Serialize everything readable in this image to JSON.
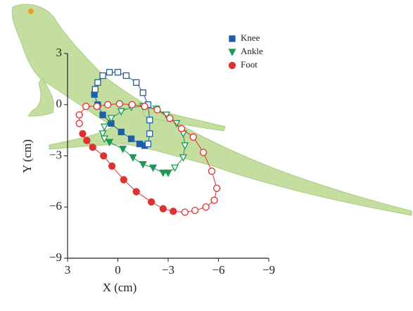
{
  "chart_data": {
    "type": "scatter",
    "xlabel": "X (cm)",
    "ylabel": "Y (cm)",
    "xlim": [
      3,
      -9
    ],
    "ylim": [
      -9,
      3
    ],
    "xticks": [
      3,
      0,
      {
        "value": -3,
        "label": "−3"
      },
      {
        "value": -6,
        "label": "−6"
      },
      {
        "value": -9,
        "label": "−9"
      }
    ],
    "yticks": [
      3,
      0,
      {
        "value": -3,
        "label": "−3"
      },
      {
        "value": -6,
        "label": "−6"
      },
      {
        "value": -9,
        "label": "−9"
      }
    ],
    "legend": "upper right",
    "series": [
      {
        "name": "Knee",
        "color": "#1f5fa8",
        "marker": "square",
        "x": [
          1.4,
          1.2,
          0.9,
          0.4,
          -0.2,
          -0.8,
          -1.3,
          -1.6,
          -1.8,
          -1.9,
          -1.9,
          -1.8,
          -1.5,
          -1.1,
          -0.5,
          0,
          0.5,
          0.9,
          1.2,
          1.35
        ],
        "values": [
          0.6,
          0.0,
          -0.6,
          -1.1,
          -1.6,
          -2.0,
          -2.3,
          -2.4,
          -2.3,
          -1.7,
          -0.9,
          0,
          0.7,
          1.3,
          1.7,
          1.9,
          1.9,
          1.7,
          1.3,
          0.9
        ],
        "filled": [
          true,
          true,
          true,
          true,
          true,
          true,
          true,
          true,
          false,
          false,
          false,
          false,
          false,
          false,
          false,
          false,
          false,
          false,
          false,
          false
        ]
      },
      {
        "name": "Ankle",
        "color": "#1a9a55",
        "marker": "triangle",
        "x": [
          0.5,
          -0.3,
          -0.9,
          -1.5,
          -2.1,
          -2.7,
          -3.0,
          -3.4,
          -3.9,
          -4.0,
          -3.9,
          -3.5,
          -2.9,
          -2.3,
          -1.5,
          -0.8,
          -0.2,
          0.4,
          0.8,
          0.9,
          0.8
        ],
        "values": [
          -2.2,
          -2.6,
          -3.1,
          -3.5,
          -3.7,
          -4.0,
          -4.0,
          -3.7,
          -3.1,
          -2.4,
          -1.7,
          -1.1,
          -0.6,
          -0.25,
          -0.1,
          -0.15,
          -0.4,
          -0.8,
          -1.3,
          -1.7,
          -2.0
        ],
        "filled": [
          true,
          true,
          true,
          true,
          true,
          true,
          true,
          false,
          false,
          false,
          false,
          false,
          false,
          false,
          false,
          false,
          false,
          false,
          false,
          false,
          false
        ]
      },
      {
        "name": "Foot",
        "color": "#e03030",
        "marker": "circle",
        "x": [
          2.1,
          1.85,
          1.5,
          0.85,
          0.35,
          -0.35,
          -1.1,
          -2.0,
          -2.7,
          -3.3,
          -4.0,
          -4.6,
          -5.25,
          -5.75,
          -5.9,
          -5.6,
          -5.1,
          -4.5,
          -3.8,
          -3.1,
          -2.35,
          -1.6,
          -0.85,
          -0.1,
          0.6,
          1.25,
          1.9,
          2.3,
          2.3
        ],
        "values": [
          -1.7,
          -2.1,
          -2.5,
          -3.0,
          -3.6,
          -4.4,
          -5.1,
          -5.7,
          -6.1,
          -6.25,
          -6.3,
          -6.2,
          -6.0,
          -5.6,
          -4.9,
          -3.9,
          -2.8,
          -1.9,
          -1.4,
          -0.8,
          -0.3,
          -0.1,
          0,
          0.05,
          0,
          -0.1,
          -0.1,
          -0.6,
          -1.1
        ],
        "filled": [
          true,
          true,
          true,
          true,
          true,
          true,
          true,
          true,
          true,
          true,
          false,
          false,
          false,
          false,
          false,
          false,
          false,
          false,
          false,
          false,
          false,
          false,
          false,
          false,
          false,
          false,
          false,
          false,
          false
        ]
      }
    ]
  }
}
